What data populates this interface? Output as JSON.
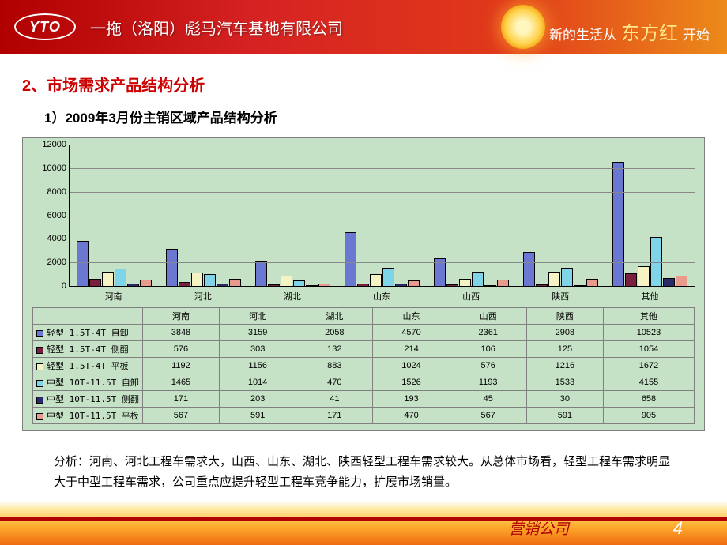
{
  "header": {
    "logo_text": "YTO",
    "company": "一拖（洛阳）彪马汽车基地有限公司",
    "slogan_prefix": "新的生活从",
    "slogan_calli": "东方红",
    "slogan_suffix": "开始"
  },
  "headings": {
    "h2": "2、市场需求产品结构分析",
    "h3": "1）2009年3月份主销区域产品结构分析"
  },
  "chart": {
    "type": "bar",
    "background_color": "#c6e2c6",
    "grid_color": "#888888",
    "ymax": 12000,
    "yticks": [
      0,
      2000,
      4000,
      6000,
      8000,
      10000,
      12000
    ],
    "categories": [
      "河南",
      "河北",
      "湖北",
      "山东",
      "山西",
      "陕西",
      "其他"
    ],
    "series": [
      {
        "name": "轻型 1.5T-4T 自卸",
        "color": "#6a78d1",
        "values": [
          3848,
          3159,
          2058,
          4570,
          2361,
          2908,
          10523
        ]
      },
      {
        "name": "轻型 1.5T-4T 侧翻",
        "color": "#7a1f3d",
        "values": [
          576,
          303,
          132,
          214,
          106,
          125,
          1054
        ]
      },
      {
        "name": "轻型 1.5T-4T 平板",
        "color": "#f5f3c4",
        "values": [
          1192,
          1156,
          883,
          1024,
          576,
          1216,
          1672
        ]
      },
      {
        "name": "中型 10T-11.5T 自卸",
        "color": "#7fd4e8",
        "values": [
          1465,
          1014,
          470,
          1526,
          1193,
          1533,
          4155
        ]
      },
      {
        "name": "中型 10T-11.5T 侧翻",
        "color": "#2a2a6a",
        "values": [
          171,
          203,
          41,
          193,
          45,
          30,
          658
        ]
      },
      {
        "name": "中型 10T-11.5T 平板",
        "color": "#e89a8c",
        "values": [
          567,
          591,
          171,
          470,
          567,
          591,
          905
        ]
      }
    ]
  },
  "analysis": "分析：河南、河北工程车需求大，山西、山东、湖北、陕西轻型工程车需求较大。从总体市场看，轻型工程车需求明显大于中型工程车需求，公司重点应提升轻型工程车竞争能力，扩展市场销量。",
  "footer": {
    "label": "营销公司",
    "page": "4"
  }
}
